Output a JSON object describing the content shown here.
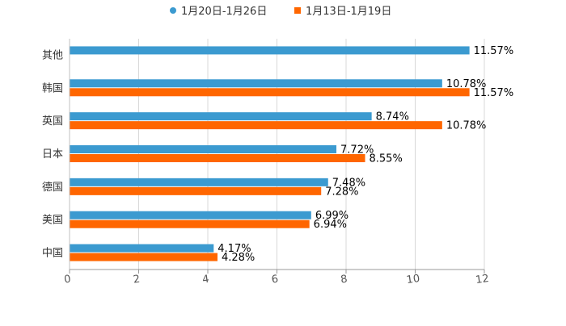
{
  "chart_data": {
    "type": "bar",
    "orientation": "horizontal",
    "categories": [
      "其他",
      "韩国",
      "英国",
      "日本",
      "德国",
      "美国",
      "中国"
    ],
    "series": [
      {
        "name": "1月20日-1月26日",
        "color": "#3b9ad0",
        "values": [
          11.57,
          10.78,
          8.74,
          7.72,
          7.48,
          6.99,
          4.17
        ],
        "labels": [
          "11.57%",
          "10.78%",
          "8.74%",
          "7.72%",
          "7.48%",
          "6.99%",
          "4.17%"
        ]
      },
      {
        "name": "1月13日-1月19日",
        "color": "#ff6600",
        "values": [
          null,
          11.57,
          10.78,
          8.55,
          7.28,
          6.94,
          4.28
        ],
        "labels": [
          null,
          "11.57%",
          "10.78%",
          "8.55%",
          "7.28%",
          "6.94%",
          "4.28%"
        ]
      }
    ],
    "xlim": [
      0,
      12
    ],
    "xticks": [
      "0",
      "2",
      "4",
      "6",
      "8",
      "10",
      "12"
    ],
    "grid": true,
    "legend_position": "top",
    "title": "",
    "xlabel": "",
    "ylabel": ""
  }
}
